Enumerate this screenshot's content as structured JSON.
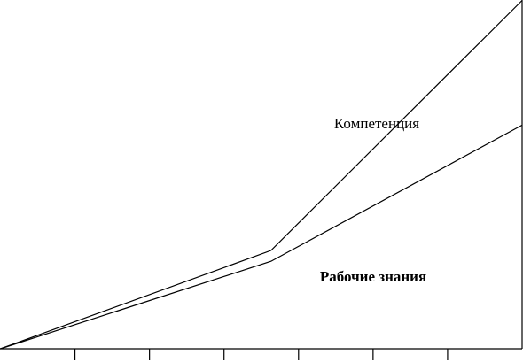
{
  "chart_data": {
    "type": "line",
    "x": [
      0,
      3.63,
      7
    ],
    "xlim": [
      0,
      7
    ],
    "xticks": [
      1,
      2,
      3,
      4,
      5,
      6
    ],
    "ylim": [
      0,
      10
    ],
    "series": [
      {
        "name": "Компетенция",
        "color": "#000000",
        "values": [
          0,
          2.82,
          10
        ]
      },
      {
        "name": "Рабочие знания",
        "color": "#000000",
        "values": [
          0,
          2.51,
          6.42
        ]
      }
    ]
  }
}
